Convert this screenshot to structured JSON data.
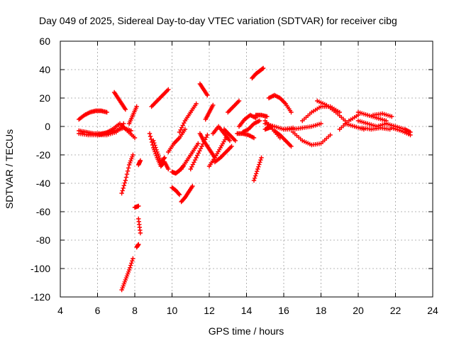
{
  "chart_data": {
    "type": "scatter",
    "title": "Day 049 of 2025, Sidereal Day-to-day VTEC variation (SDTVAR) for receiver cibg",
    "xlabel": "GPS time / hours",
    "ylabel": "SDTVAR / TECUs",
    "xlim": [
      4,
      24
    ],
    "ylim": [
      -120,
      60
    ],
    "xticks": [
      4,
      6,
      8,
      10,
      12,
      14,
      16,
      18,
      20,
      22,
      24
    ],
    "yticks": [
      -120,
      -100,
      -80,
      -60,
      -40,
      -20,
      0,
      20,
      40,
      60
    ],
    "grid": true,
    "marker": "+",
    "color": "#ff0000",
    "series": [
      {
        "name": "s1",
        "x": [
          5.0,
          5.3,
          5.6,
          5.9,
          6.2,
          6.5
        ],
        "y": [
          5,
          8,
          10,
          11,
          11,
          10
        ]
      },
      {
        "name": "s2",
        "x": [
          5.0,
          5.4,
          5.8,
          6.2,
          6.6,
          7.0,
          7.4,
          7.8
        ],
        "y": [
          -3,
          -4,
          -5,
          -5,
          -4,
          -3,
          -1,
          -3
        ]
      },
      {
        "name": "s3",
        "x": [
          5.0,
          5.5,
          6.0,
          6.5,
          7.0,
          7.4
        ],
        "y": [
          -5,
          -6,
          -6,
          -6,
          -4,
          2
        ]
      },
      {
        "name": "s4",
        "x": [
          6.0,
          6.4,
          6.8,
          7.2,
          7.6,
          8.0
        ],
        "y": [
          -6,
          -5,
          -2,
          2,
          -3,
          -8
        ]
      },
      {
        "name": "s5",
        "x": [
          6.9,
          7.1,
          7.3,
          7.5
        ],
        "y": [
          24,
          20,
          16,
          12
        ]
      },
      {
        "name": "s6",
        "x": [
          7.3,
          7.5,
          7.7,
          7.9
        ],
        "y": [
          -47,
          -38,
          -27,
          -20
        ]
      },
      {
        "name": "s7",
        "x": [
          7.3,
          7.5,
          7.7,
          7.9
        ],
        "y": [
          -115,
          -108,
          -101,
          -93
        ]
      },
      {
        "name": "s8",
        "x": [
          7.7,
          7.9,
          8.1
        ],
        "y": [
          2,
          8,
          14
        ]
      },
      {
        "name": "s9",
        "x": [
          8.0,
          8.2
        ],
        "y": [
          -57,
          -56
        ]
      },
      {
        "name": "s10",
        "x": [
          8.1,
          8.2
        ],
        "y": [
          -85,
          -83
        ]
      },
      {
        "name": "s11",
        "x": [
          8.2,
          8.3
        ],
        "y": [
          -65,
          -75
        ]
      },
      {
        "name": "s12",
        "x": [
          8.2,
          8.3
        ],
        "y": [
          -27,
          -24
        ]
      },
      {
        "name": "s13",
        "x": [
          8.9,
          9.2,
          9.5,
          9.8
        ],
        "y": [
          14,
          18,
          22,
          26
        ]
      },
      {
        "name": "s14",
        "x": [
          8.8,
          9.0,
          9.2,
          9.4,
          9.6,
          9.8
        ],
        "y": [
          -5,
          -15,
          -22,
          -28,
          -25,
          -30
        ]
      },
      {
        "name": "s15",
        "x": [
          9.0,
          9.2,
          9.4,
          9.6
        ],
        "y": [
          -10,
          -18,
          -25,
          -22
        ]
      },
      {
        "name": "s16",
        "x": [
          9.8,
          10.1,
          10.4,
          10.7
        ],
        "y": [
          -18,
          -12,
          -8,
          -2
        ]
      },
      {
        "name": "s17",
        "x": [
          10.0,
          10.2,
          10.4,
          10.6
        ],
        "y": [
          -32,
          -33,
          -31,
          -28
        ]
      },
      {
        "name": "s18",
        "x": [
          10.0,
          10.2,
          10.4
        ],
        "y": [
          -43,
          -45,
          -48
        ]
      },
      {
        "name": "s19",
        "x": [
          10.5,
          10.7,
          10.9,
          11.1
        ],
        "y": [
          -53,
          -50,
          -46,
          -42
        ]
      },
      {
        "name": "s20",
        "x": [
          10.4,
          10.7,
          11.0,
          11.3
        ],
        "y": [
          -4,
          4,
          10,
          16
        ]
      },
      {
        "name": "s21",
        "x": [
          10.5,
          10.8,
          11.1,
          11.4
        ],
        "y": [
          -30,
          -24,
          -18,
          -12
        ]
      },
      {
        "name": "s22",
        "x": [
          11.0,
          11.3,
          11.6,
          11.9
        ],
        "y": [
          -30,
          -22,
          -14,
          -6
        ]
      },
      {
        "name": "s23",
        "x": [
          11.5,
          11.7,
          11.9
        ],
        "y": [
          30,
          26,
          22
        ]
      },
      {
        "name": "s24",
        "x": [
          11.5,
          11.7,
          11.9,
          12.1,
          12.3
        ],
        "y": [
          -5,
          -10,
          -14,
          -18,
          -22
        ]
      },
      {
        "name": "s25",
        "x": [
          11.8,
          12.0,
          12.2
        ],
        "y": [
          5,
          10,
          15
        ]
      },
      {
        "name": "s26",
        "x": [
          12.0,
          12.3,
          12.6,
          12.9
        ],
        "y": [
          -28,
          -22,
          -15,
          -8
        ]
      },
      {
        "name": "s27",
        "x": [
          12.2,
          12.5,
          12.8,
          13.1
        ],
        "y": [
          -5,
          0,
          -5,
          -10
        ]
      },
      {
        "name": "s28",
        "x": [
          12.3,
          12.6,
          12.9,
          13.2
        ],
        "y": [
          -25,
          -22,
          -18,
          -14
        ]
      },
      {
        "name": "s29",
        "x": [
          12.8,
          13.1,
          13.4
        ],
        "y": [
          -2,
          -6,
          -10
        ]
      },
      {
        "name": "s30",
        "x": [
          13.0,
          13.3,
          13.6
        ],
        "y": [
          10,
          14,
          18
        ]
      },
      {
        "name": "s31",
        "x": [
          13.5,
          13.8,
          14.1,
          14.4
        ],
        "y": [
          -5,
          -5,
          -6,
          -8
        ]
      },
      {
        "name": "s32",
        "x": [
          13.6,
          13.9,
          14.2,
          14.5
        ],
        "y": [
          0,
          5,
          8,
          6
        ]
      },
      {
        "name": "s33",
        "x": [
          13.8,
          14.1,
          14.4,
          14.7
        ],
        "y": [
          -4,
          -2,
          2,
          4
        ]
      },
      {
        "name": "s34",
        "x": [
          14.3,
          14.5,
          14.7,
          14.9
        ],
        "y": [
          34,
          37,
          39,
          41
        ]
      },
      {
        "name": "s35",
        "x": [
          14.4,
          14.6,
          14.8
        ],
        "y": [
          -38,
          -30,
          -22
        ]
      },
      {
        "name": "s36",
        "x": [
          14.5,
          14.8,
          15.1
        ],
        "y": [
          8,
          8,
          7
        ]
      },
      {
        "name": "s37",
        "x": [
          15.0,
          15.2,
          15.4
        ],
        "y": [
          -2,
          -1,
          0
        ]
      },
      {
        "name": "s38",
        "x": [
          15.2,
          15.5,
          15.8,
          16.1,
          16.4
        ],
        "y": [
          20,
          22,
          20,
          16,
          10
        ]
      },
      {
        "name": "s39",
        "x": [
          15.0,
          15.4,
          15.8
        ],
        "y": [
          4,
          -2,
          -8
        ]
      },
      {
        "name": "s40",
        "x": [
          15.5,
          15.8,
          16.1,
          16.4
        ],
        "y": [
          -3,
          -6,
          -10,
          -14
        ]
      },
      {
        "name": "s41",
        "x": [
          15.0,
          15.5,
          16.0,
          16.5
        ],
        "y": [
          2,
          0,
          -2,
          -1
        ]
      },
      {
        "name": "s42",
        "x": [
          16.0,
          16.5,
          17.0,
          17.5,
          18.0
        ],
        "y": [
          -2,
          -2,
          -1,
          0,
          2
        ]
      },
      {
        "name": "s43",
        "x": [
          16.5,
          17.0,
          17.5,
          18.0,
          18.5
        ],
        "y": [
          -4,
          -10,
          -13,
          -12,
          -6
        ]
      },
      {
        "name": "s44",
        "x": [
          17.0,
          17.5,
          18.0,
          18.5,
          19.0
        ],
        "y": [
          4,
          10,
          14,
          14,
          10
        ]
      },
      {
        "name": "s45",
        "x": [
          17.8,
          18.3,
          18.8,
          19.3
        ],
        "y": [
          18,
          15,
          10,
          4
        ]
      },
      {
        "name": "s46",
        "x": [
          19.0,
          19.5,
          20.0
        ],
        "y": [
          -2,
          4,
          8
        ]
      },
      {
        "name": "s47",
        "x": [
          19.3,
          19.8,
          20.3
        ],
        "y": [
          2,
          0,
          -2
        ]
      },
      {
        "name": "s48",
        "x": [
          20.0,
          20.5,
          21.0,
          21.5
        ],
        "y": [
          10,
          8,
          6,
          4
        ]
      },
      {
        "name": "s49",
        "x": [
          20.0,
          20.5,
          21.0,
          21.5
        ],
        "y": [
          4,
          2,
          0,
          2
        ]
      },
      {
        "name": "s50",
        "x": [
          20.2,
          20.7,
          21.2,
          21.7
        ],
        "y": [
          -1,
          -2,
          -1,
          -2
        ]
      },
      {
        "name": "s51",
        "x": [
          20.8,
          21.3,
          21.8
        ],
        "y": [
          8,
          9,
          7
        ]
      },
      {
        "name": "s52",
        "x": [
          21.5,
          22.0,
          22.5,
          22.8
        ],
        "y": [
          2,
          0,
          -2,
          -4
        ]
      },
      {
        "name": "s53",
        "x": [
          21.8,
          22.3,
          22.8
        ],
        "y": [
          -1,
          -3,
          -6
        ]
      }
    ]
  }
}
